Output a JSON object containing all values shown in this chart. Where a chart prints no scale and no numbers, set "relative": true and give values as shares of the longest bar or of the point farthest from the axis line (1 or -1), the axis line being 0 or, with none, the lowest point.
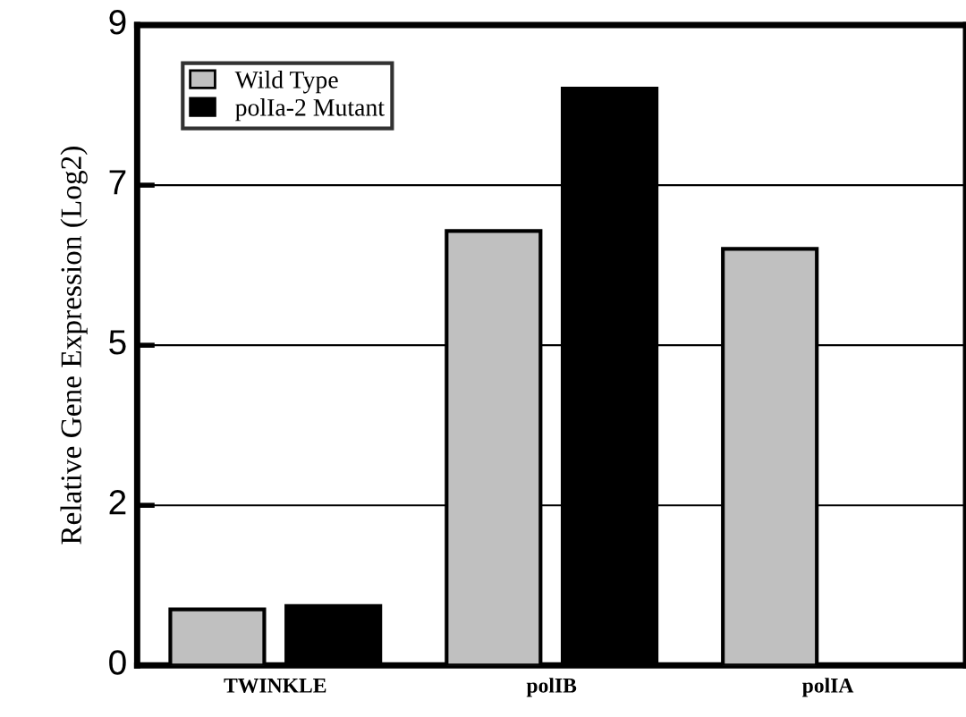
{
  "chart_data": {
    "type": "bar",
    "ylabel": "Relative Gene Expression (Log2)",
    "relative": true,
    "categories": [
      "TWINKLE",
      "polIB",
      "polIA"
    ],
    "series": [
      {
        "name": "Wild Type",
        "color": "#c0c0c0",
        "values": [
          0.097,
          0.753,
          0.722
        ]
      },
      {
        "name": "polIa-2 Mutant",
        "color": "#000000",
        "values": [
          0.103,
          1,
          0
        ]
      }
    ],
    "annotations": [
      "0",
      "2",
      "5",
      "7",
      "9"
    ],
    "grid": "y",
    "legend": "top left"
  }
}
